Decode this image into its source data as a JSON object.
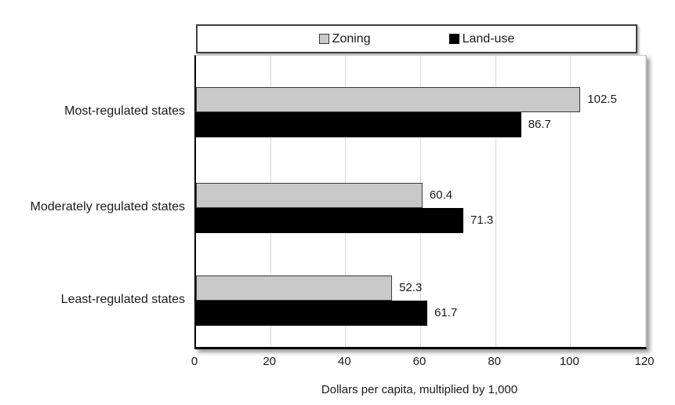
{
  "chart_data": {
    "type": "bar",
    "orientation": "horizontal",
    "title": "",
    "categories": [
      "Most-regulated states",
      "Moderately regulated states",
      "Least-regulated states"
    ],
    "series": [
      {
        "name": "Zoning",
        "color": "#c9c9c9",
        "values": [
          102.5,
          60.4,
          52.3
        ]
      },
      {
        "name": "Land-use",
        "color": "#000000",
        "values": [
          86.7,
          71.3,
          61.7
        ]
      }
    ],
    "data_labels": {
      "Zoning": [
        "102.5",
        "60.4",
        "52.3"
      ],
      "Land-use": [
        "86.7",
        "71.3",
        "61.7"
      ]
    },
    "xlabel": "Dollars per capita, multiplied by 1,000",
    "ylabel": "",
    "xlim": [
      0,
      120
    ],
    "xticks": [
      "0",
      "20",
      "40",
      "60",
      "80",
      "100",
      "120"
    ],
    "grid": true,
    "gridline_color": "#d9d9d9",
    "legend_position": "top",
    "legend_border_color": "#3f3f3f"
  }
}
